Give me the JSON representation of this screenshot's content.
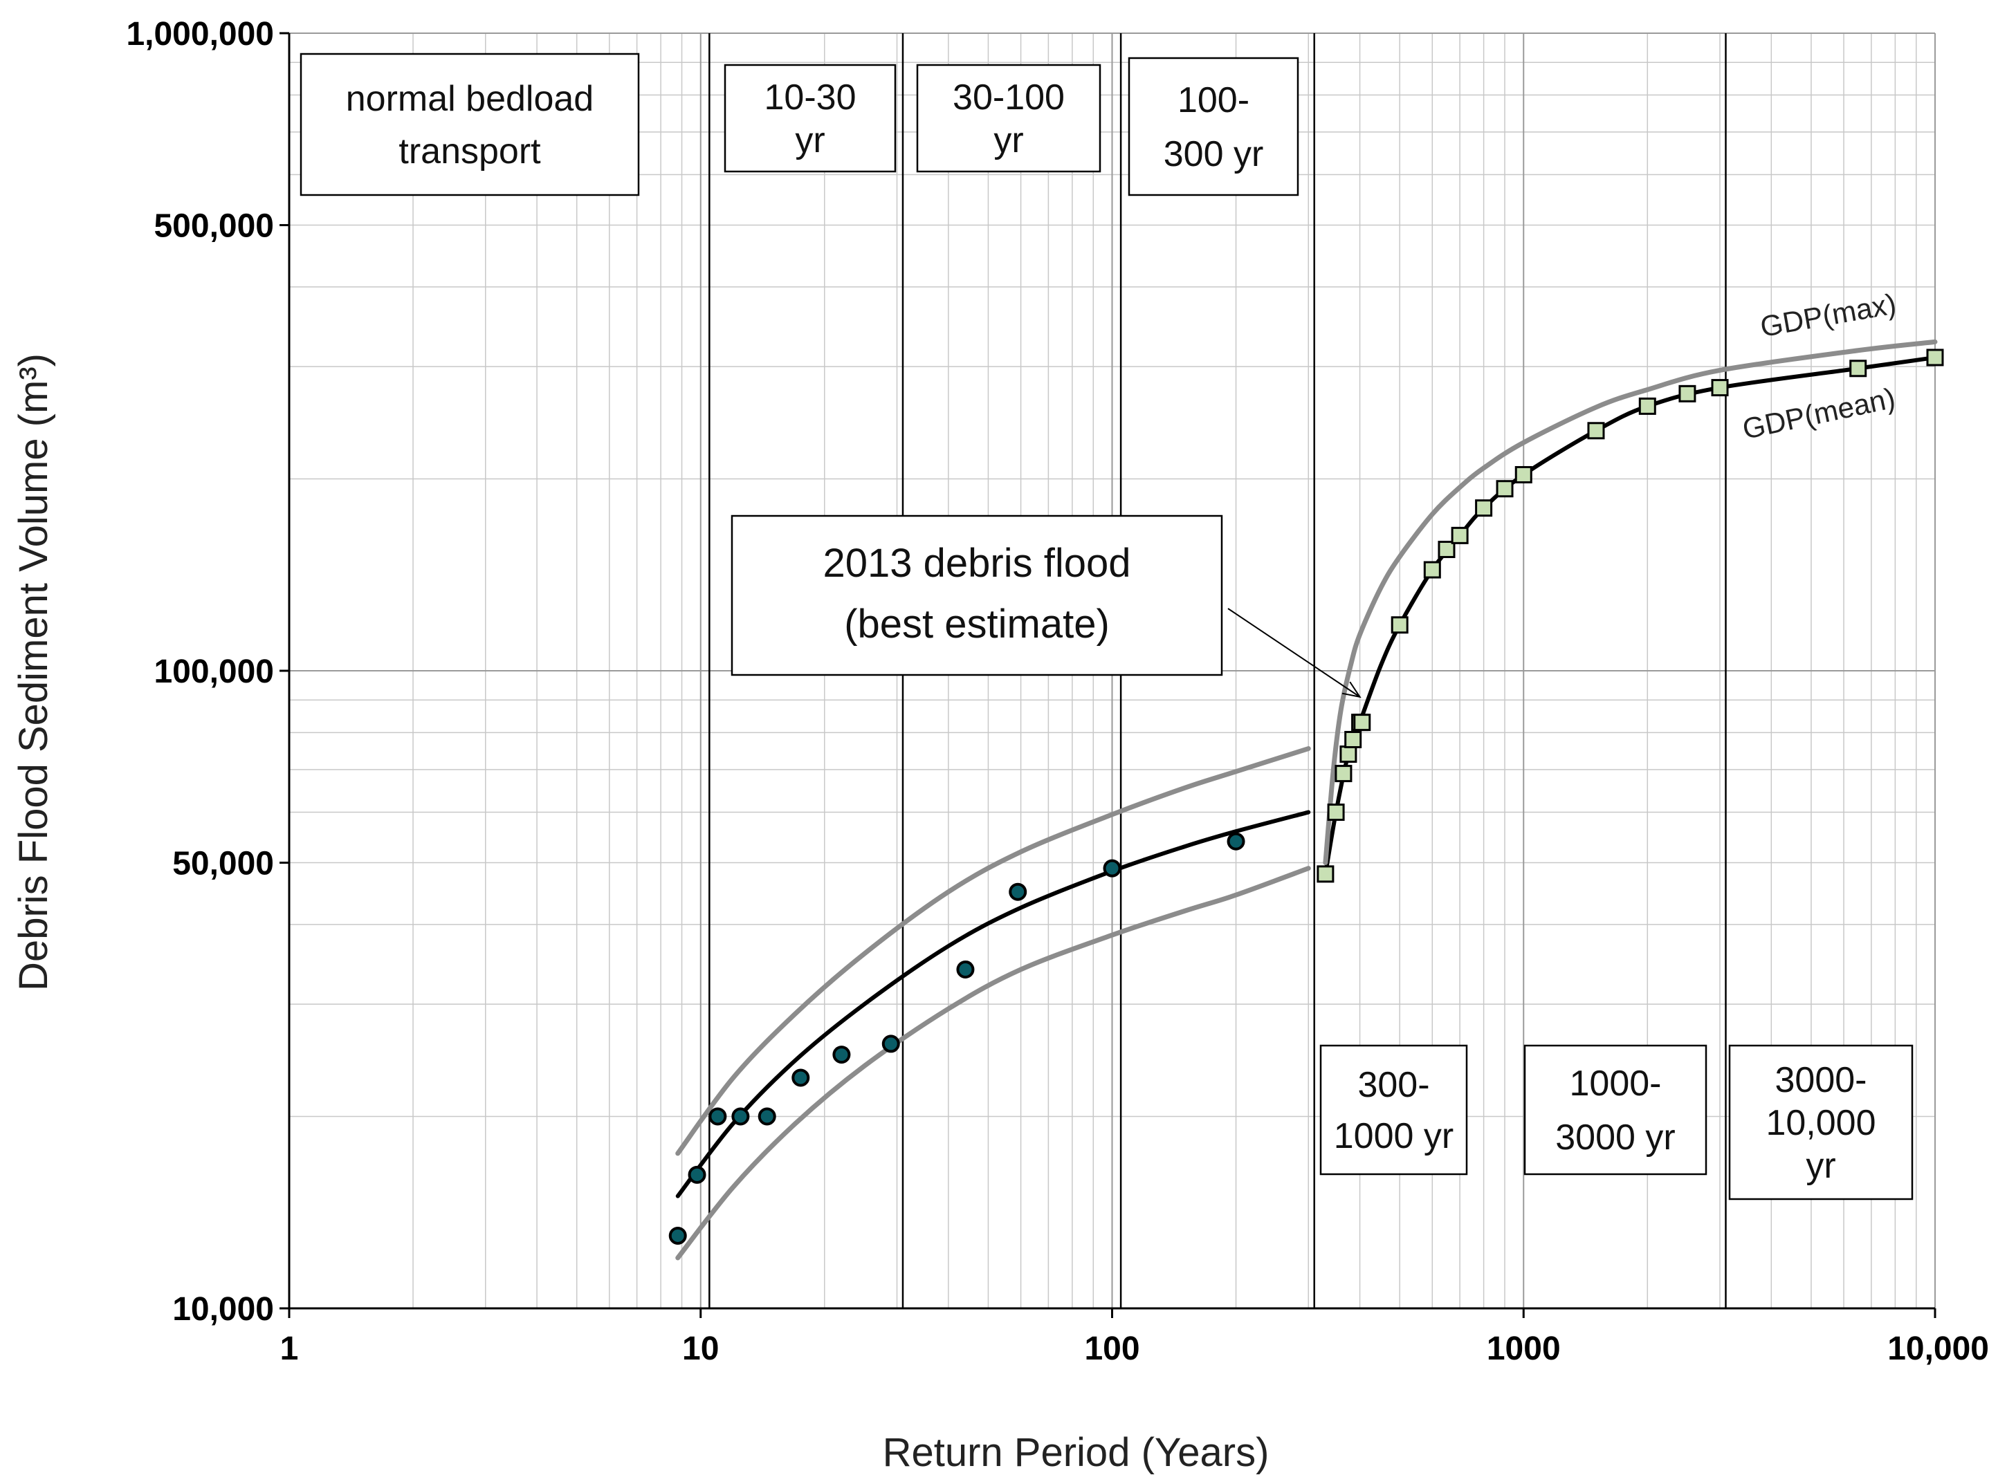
{
  "chart_data": {
    "type": "scatter",
    "xlabel": "Return Period (Years)",
    "ylabel": "Debris Flood Sediment Volume (m³)",
    "xscale": "log",
    "yscale": "log",
    "xlim": [
      1,
      10000
    ],
    "ylim": [
      10000,
      1000000
    ],
    "x_ticks": [
      {
        "value": 1,
        "label": "1"
      },
      {
        "value": 10,
        "label": "10"
      },
      {
        "value": 100,
        "label": "100"
      },
      {
        "value": 1000,
        "label": "1000"
      },
      {
        "value": 10000,
        "label": "10,000"
      }
    ],
    "y_ticks": [
      {
        "value": 10000,
        "label": "10,000"
      },
      {
        "value": 50000,
        "label": "50,000"
      },
      {
        "value": 100000,
        "label": "100,000"
      },
      {
        "value": 500000,
        "label": "500,000"
      },
      {
        "value": 1000000,
        "label": "1,000,000"
      }
    ],
    "grid": true,
    "period_boundaries": [
      10.5,
      31,
      105,
      310,
      3100
    ],
    "period_boxes": [
      {
        "lines": [
          "normal bedload",
          "transport"
        ]
      },
      {
        "lines": [
          "10-30",
          "yr"
        ]
      },
      {
        "lines": [
          "30-100",
          "yr"
        ]
      },
      {
        "lines": [
          "100-",
          "300 yr"
        ]
      },
      {
        "lines": [
          "300-",
          "1000 yr"
        ]
      },
      {
        "lines": [
          "1000-",
          "3000 yr"
        ]
      },
      {
        "lines": [
          "3000-",
          "10,000",
          "yr"
        ]
      }
    ],
    "series": [
      {
        "marker": "circle",
        "color": "#0a5c66",
        "x": [
          8.8,
          9.8,
          11,
          12.5,
          14.5,
          17.5,
          22,
          29,
          44,
          59,
          100,
          200
        ],
        "y": [
          13000,
          16200,
          20000,
          20000,
          20000,
          23000,
          25000,
          26000,
          34000,
          45000,
          49000,
          54000
        ]
      },
      {
        "marker": "square",
        "color": "#c8e0b4",
        "x": [
          330,
          350,
          365,
          375,
          385,
          400,
          405,
          500,
          600,
          650,
          700,
          800,
          900,
          1000,
          1500,
          2000,
          2500,
          3000,
          6500,
          10000
        ],
        "y": [
          48000,
          60000,
          69000,
          74000,
          78000,
          83000,
          83000,
          118000,
          144000,
          155000,
          163000,
          180000,
          193000,
          203000,
          238000,
          260000,
          272000,
          278000,
          298000,
          310000
        ]
      },
      {
        "style": "line",
        "color": "#000000",
        "x": [
          8.8,
          12,
          17,
          25,
          40,
          60,
          100,
          150,
          200,
          300
        ],
        "y": [
          15000,
          19500,
          24500,
          30000,
          37000,
          42500,
          48500,
          53000,
          56000,
          60000
        ]
      },
      {
        "style": "line",
        "color": "#8c8c8c",
        "x": [
          8.8,
          12,
          17,
          25,
          40,
          60,
          100,
          150,
          200,
          300
        ],
        "y": [
          17500,
          23000,
          29000,
          36000,
          45000,
          52000,
          59500,
          65500,
          69500,
          75500
        ]
      },
      {
        "style": "line",
        "color": "#8c8c8c",
        "x": [
          8.8,
          12,
          17,
          25,
          40,
          60,
          100,
          150,
          200,
          300
        ],
        "y": [
          12000,
          15500,
          19500,
          24000,
          29500,
          34000,
          38500,
          42000,
          44500,
          49000
        ]
      },
      {
        "name": "GDP(mean)",
        "style": "line",
        "color": "#000000",
        "x": [
          330,
          350,
          375,
          400,
          450,
          500,
          600,
          700,
          800,
          1000,
          1500,
          2000,
          3000,
          6500,
          10000
        ],
        "y": [
          48000,
          60000,
          74000,
          83000,
          102000,
          118000,
          144000,
          163000,
          180000,
          203000,
          238000,
          260000,
          278000,
          298000,
          310000
        ]
      },
      {
        "name": "GDP(max)",
        "style": "line",
        "color": "#8c8c8c",
        "x": [
          330,
          345,
          360,
          380,
          400,
          450,
          500,
          600,
          700,
          800,
          1000,
          1500,
          2000,
          3000,
          6500,
          10000
        ],
        "y": [
          50000,
          70000,
          87000,
          102000,
          114000,
          135000,
          151000,
          176000,
          194000,
          208000,
          228000,
          259000,
          276000,
          296000,
          318000,
          328000
        ]
      }
    ],
    "annotations": [
      {
        "text_lines": [
          "2013 debris flood",
          "(best estimate)"
        ],
        "arrow_to": {
          "x": 400,
          "y": 91000
        }
      }
    ]
  }
}
